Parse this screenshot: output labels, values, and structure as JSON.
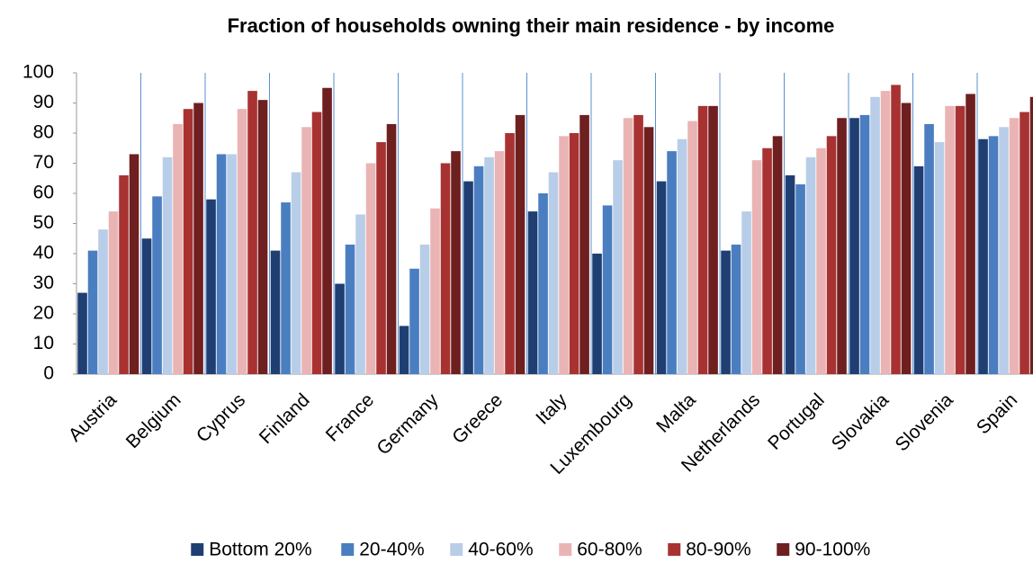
{
  "chart_data": {
    "type": "bar",
    "title": "Fraction of households owning their main residence - by income",
    "categories": [
      "Austria",
      "Belgium",
      "Cyprus",
      "Finland",
      "France",
      "Germany",
      "Greece",
      "Italy",
      "Luxembourg",
      "Malta",
      "Netherlands",
      "Portugal",
      "Slovakia",
      "Slovenia",
      "Spain"
    ],
    "series": [
      {
        "name": "Bottom 20%",
        "color": "#1f3f73",
        "values": [
          27,
          45,
          58,
          41,
          30,
          16,
          64,
          54,
          40,
          64,
          41,
          66,
          85,
          69,
          78
        ]
      },
      {
        "name": "20-40%",
        "color": "#4a7ec0",
        "values": [
          41,
          59,
          73,
          57,
          43,
          35,
          69,
          60,
          56,
          74,
          43,
          63,
          86,
          83,
          79
        ]
      },
      {
        "name": "40-60%",
        "color": "#b8cde8",
        "values": [
          48,
          72,
          73,
          67,
          53,
          43,
          72,
          67,
          71,
          78,
          54,
          72,
          92,
          77,
          82
        ]
      },
      {
        "name": "60-80%",
        "color": "#eab4b4",
        "values": [
          54,
          83,
          88,
          82,
          70,
          55,
          74,
          79,
          85,
          84,
          71,
          75,
          94,
          89,
          85
        ]
      },
      {
        "name": "80-90%",
        "color": "#a83232",
        "values": [
          66,
          88,
          94,
          87,
          77,
          70,
          80,
          80,
          86,
          89,
          75,
          79,
          96,
          89,
          87
        ]
      },
      {
        "name": "90-100%",
        "color": "#6e1f1f",
        "values": [
          73,
          90,
          91,
          95,
          83,
          74,
          86,
          86,
          82,
          89,
          79,
          85,
          90,
          93,
          92
        ]
      }
    ],
    "ylim": [
      0,
      100
    ],
    "yticks": [
      0,
      10,
      20,
      30,
      40,
      50,
      60,
      70,
      80,
      90,
      100
    ],
    "grid": false,
    "legend": "bottom"
  }
}
